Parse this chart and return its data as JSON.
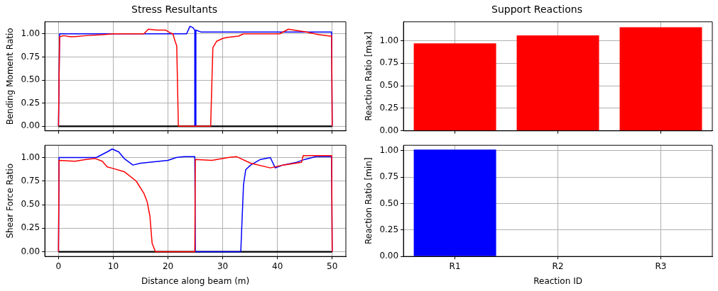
{
  "chart_data": [
    {
      "type": "line",
      "title": "Stress Resultants",
      "ylabel": "Bending Moment Ratio",
      "xlim": [
        -2.5,
        52.5
      ],
      "ylim": [
        -0.05,
        1.13
      ],
      "xticks": [
        0,
        10,
        20,
        30,
        40,
        50
      ],
      "yticks": [
        {
          "value": 0,
          "label": "0.00"
        },
        {
          "value": 0.25,
          "label": "0.25"
        },
        {
          "value": 0.5,
          "label": "0.50"
        },
        {
          "value": 0.75,
          "label": "0.75"
        },
        {
          "value": 1,
          "label": "1.00"
        }
      ],
      "tick_labels": "y",
      "grid": true,
      "legend": false,
      "marker": "none",
      "line_style": "solid",
      "series": [
        {
          "color": "#ff0000",
          "x": [
            0,
            0.2,
            1,
            2,
            3,
            5,
            8,
            10,
            12,
            15.6,
            16.4,
            18,
            19.6,
            20.4,
            20.9,
            21.3,
            21.6,
            21.9,
            27.8,
            28.2,
            28.9,
            30,
            30.7,
            32,
            32.9,
            33.8,
            36,
            40.4,
            42,
            45.3,
            47.6,
            49.6,
            49.9,
            50
          ],
          "values": [
            0,
            0.97,
            0.98,
            0.97,
            0.97,
            0.98,
            0.99,
            1.0,
            1.0,
            1.0,
            1.05,
            1.04,
            1.04,
            1.01,
            1.0,
            0.92,
            0.87,
            0,
            0,
            0.85,
            0.92,
            0.95,
            0.96,
            0.97,
            0.975,
            1.0,
            1.0,
            1.0,
            1.05,
            1.02,
            0.99,
            0.975,
            0.98,
            0
          ]
        },
        {
          "color": "#0000ff",
          "x": [
            0,
            0.2,
            23.4,
            24,
            24.5,
            24.9,
            24.9,
            25,
            25.1,
            26,
            49.9,
            50
          ],
          "values": [
            0,
            1.0,
            1.0,
            1.08,
            1.07,
            1.04,
            0,
            0,
            1.04,
            1.02,
            1.02,
            0
          ]
        },
        {
          "color": "#000000",
          "x": [
            0,
            50
          ],
          "values": [
            0,
            0
          ]
        }
      ]
    },
    {
      "type": "line",
      "xlabel": "Distance along beam (m)",
      "ylabel": "Shear Force Ratio",
      "xlim": [
        -2.5,
        52.5
      ],
      "ylim": [
        -0.05,
        1.13
      ],
      "xticks": [
        0,
        10,
        20,
        30,
        40,
        50
      ],
      "yticks": [
        {
          "value": 0,
          "label": "0.00"
        },
        {
          "value": 0.25,
          "label": "0.25"
        },
        {
          "value": 0.5,
          "label": "0.50"
        },
        {
          "value": 0.75,
          "label": "0.75"
        },
        {
          "value": 1,
          "label": "1.00"
        }
      ],
      "grid": true,
      "legend": false,
      "marker": "none",
      "line_style": "solid",
      "series": [
        {
          "color": "#ff0000",
          "x": [
            0,
            0.1,
            3,
            5,
            6.7,
            8,
            8.9,
            9.6,
            12,
            14.2,
            15.6,
            16.2,
            16.7,
            17.1,
            17.7,
            24.9,
            25,
            28,
            31,
            32.5,
            35.1,
            38.7,
            41,
            44.4,
            44.7,
            49.9,
            50
          ],
          "values": [
            0,
            0.97,
            0.96,
            0.98,
            0.99,
            0.96,
            0.9,
            0.89,
            0.85,
            0.75,
            0.62,
            0.53,
            0.38,
            0.09,
            0,
            0,
            0.98,
            0.97,
            1.0,
            1.01,
            0.94,
            0.89,
            0.92,
            0.95,
            1.02,
            1.02,
            0
          ]
        },
        {
          "color": "#0000ff",
          "x": [
            0,
            0.1,
            6.9,
            8.9,
            9.8,
            11,
            12,
            13.6,
            15,
            20,
            21.5,
            23,
            24.9,
            25,
            33.3,
            33.8,
            34.2,
            35.1,
            36.9,
            38.7,
            39.6,
            41,
            43.5,
            45,
            47,
            49.9,
            50
          ],
          "values": [
            0,
            1.0,
            1.0,
            1.06,
            1.09,
            1.06,
            0.99,
            0.92,
            0.94,
            0.97,
            1.0,
            1.01,
            1.01,
            0,
            0,
            0.71,
            0.87,
            0.92,
            0.98,
            1.0,
            0.89,
            0.92,
            0.95,
            0.98,
            1.01,
            1.01,
            0
          ]
        },
        {
          "color": "#000000",
          "x": [
            0,
            50
          ],
          "values": [
            0,
            0
          ]
        }
      ]
    },
    {
      "type": "bar",
      "title": "Support Reactions",
      "ylabel": "Reaction Ratio [max]",
      "categories": [
        null,
        null,
        null
      ],
      "ylim": [
        0,
        1.21
      ],
      "yticks": [
        {
          "value": 0,
          "label": "0.00"
        },
        {
          "value": 0.25,
          "label": "0.25"
        },
        {
          "value": 0.5,
          "label": "0.50"
        },
        {
          "value": 0.75,
          "label": "0.75"
        },
        {
          "value": 1,
          "label": "1.00"
        }
      ],
      "tick_labels": "y",
      "grid": true,
      "legend": false,
      "series": [
        {
          "color": "#ff0000",
          "values": [
            0.97,
            1.06,
            1.15
          ]
        }
      ]
    },
    {
      "type": "bar",
      "xlabel": "Reaction ID",
      "ylabel": "Reaction Ratio [min]",
      "categories": [
        "R1",
        "R2",
        "R3"
      ],
      "ylim": [
        0,
        1.05
      ],
      "yticks": [
        {
          "value": 0,
          "label": "0.00"
        },
        {
          "value": 0.25,
          "label": "0.25"
        },
        {
          "value": 0.5,
          "label": "0.50"
        },
        {
          "value": 0.75,
          "label": "0.75"
        },
        {
          "value": 1,
          "label": "1.00"
        }
      ],
      "grid": true,
      "legend": false,
      "series": [
        {
          "color": "#0000ff",
          "values": [
            1.01,
            0,
            0
          ]
        }
      ]
    }
  ]
}
